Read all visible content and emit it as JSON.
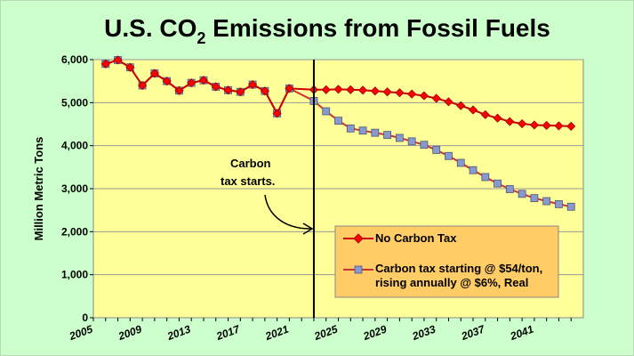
{
  "chart_data": {
    "type": "line",
    "title_main": "U.S. CO",
    "title_sub": "2",
    "title_rest": " Emissions from Fossil Fuels",
    "ylabel": "Million Metric Tons",
    "xlabel": "",
    "ylim": [
      0,
      6000
    ],
    "xlim": [
      2005,
      2045
    ],
    "y_ticks": [
      0,
      1000,
      2000,
      3000,
      4000,
      5000,
      6000
    ],
    "y_tick_labels": [
      "0",
      "1,000",
      "2,000",
      "3,000",
      "4,000",
      "5,000",
      "6,000"
    ],
    "x_ticks": [
      2005,
      2009,
      2013,
      2017,
      2021,
      2025,
      2029,
      2033,
      2037,
      2041
    ],
    "x_tick_labels": [
      "2005",
      "2009",
      "2013",
      "2017",
      "2021",
      "2025",
      "2029",
      "2033",
      "2037",
      "2041"
    ],
    "grid": "horizontal",
    "tax_start_year": 2023,
    "annotation": [
      "Carbon",
      "tax starts."
    ],
    "legend_position": "bottom-right",
    "series": [
      {
        "name": "No Carbon Tax",
        "color": "#cc0000",
        "marker_color": "#ff0000",
        "marker": "diamond",
        "x": [
          2006,
          2007,
          2008,
          2009,
          2010,
          2011,
          2012,
          2013,
          2014,
          2015,
          2016,
          2017,
          2018,
          2019,
          2020,
          2021,
          2023,
          2024,
          2025,
          2026,
          2027,
          2028,
          2029,
          2030,
          2031,
          2032,
          2033,
          2034,
          2035,
          2036,
          2037,
          2038,
          2039,
          2040,
          2041,
          2042,
          2043,
          2044
        ],
        "values": [
          5900,
          5990,
          5820,
          5400,
          5680,
          5500,
          5280,
          5460,
          5520,
          5370,
          5290,
          5250,
          5420,
          5270,
          4750,
          5330,
          5300,
          5300,
          5310,
          5300,
          5290,
          5270,
          5250,
          5230,
          5200,
          5160,
          5100,
          5020,
          4930,
          4830,
          4720,
          4640,
          4560,
          4510,
          4480,
          4470,
          4460,
          4450
        ]
      },
      {
        "name": "Carbon tax starting @ $54/ton, rising annually @ $6%, Real",
        "color": "#cc3333",
        "marker_color": "#8899cc",
        "marker": "square",
        "x": [
          2006,
          2007,
          2008,
          2009,
          2010,
          2011,
          2012,
          2013,
          2014,
          2015,
          2016,
          2017,
          2018,
          2019,
          2020,
          2021,
          2023,
          2024,
          2025,
          2026,
          2027,
          2028,
          2029,
          2030,
          2031,
          2032,
          2033,
          2034,
          2035,
          2036,
          2037,
          2038,
          2039,
          2040,
          2041,
          2042,
          2043,
          2044
        ],
        "values": [
          5900,
          5990,
          5820,
          5400,
          5680,
          5500,
          5280,
          5460,
          5520,
          5370,
          5290,
          5250,
          5420,
          5270,
          4750,
          5330,
          5040,
          4800,
          4580,
          4400,
          4350,
          4300,
          4250,
          4180,
          4100,
          4020,
          3900,
          3760,
          3600,
          3430,
          3270,
          3120,
          2990,
          2880,
          2780,
          2710,
          2640,
          2580
        ]
      }
    ]
  }
}
